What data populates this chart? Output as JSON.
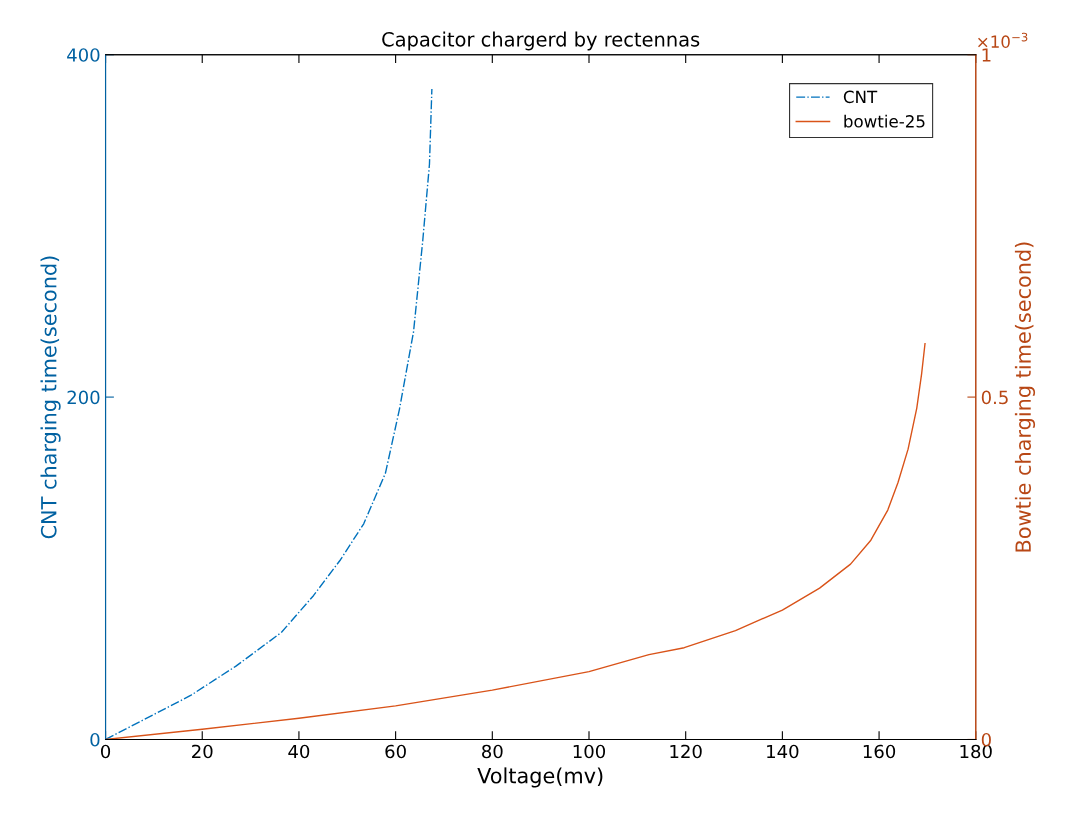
{
  "chart_data": {
    "type": "line",
    "title": "Capacitor chargerd by rectennas",
    "xlabel": "Voltage(mv)",
    "ylabel": "CNT charging time(second)",
    "y2label": "Bowtie charging time(second)",
    "annotations": [
      "×10$^{−3}$"
    ],
    "xlim": [
      0,
      180
    ],
    "xticks": [
      0,
      20,
      40,
      60,
      80,
      100,
      120,
      140,
      160,
      180
    ],
    "ylim": [
      0,
      400
    ],
    "yticks": [
      0,
      200,
      400
    ],
    "y2lim": [
      0,
      1
    ],
    "y2ticks": [
      0,
      0.5,
      1
    ],
    "grid": false,
    "legend": "top right",
    "marker": "none",
    "series": [
      {
        "name": "CNT",
        "color": "#0072bd",
        "line_style": "dashdot",
        "x": [
          0,
          17.6,
          26.9,
          36.4,
          43,
          48.6,
          53.4,
          57.9,
          60.8,
          63.7,
          65.6,
          67.0,
          67.5
        ],
        "values": [
          0,
          25.7,
          42.7,
          62.6,
          84,
          105,
          126,
          155.6,
          193,
          238,
          291,
          336,
          380
        ]
      },
      {
        "name": "bowtie-25",
        "color": "#d95319",
        "line_style": "solid",
        "axis": "y2",
        "x": [
          0,
          20,
          40,
          60,
          80,
          100,
          112.4,
          119.7,
          130.3,
          140,
          147.7,
          154.1,
          158.3,
          161.8,
          163.9,
          166,
          167.8,
          168.8,
          169.5
        ],
        "values": [
          0,
          0.015,
          0.031,
          0.049,
          0.072,
          0.099,
          0.124,
          0.134,
          0.159,
          0.189,
          0.221,
          0.256,
          0.291,
          0.335,
          0.375,
          0.424,
          0.484,
          0.534,
          0.578
        ]
      }
    ]
  }
}
